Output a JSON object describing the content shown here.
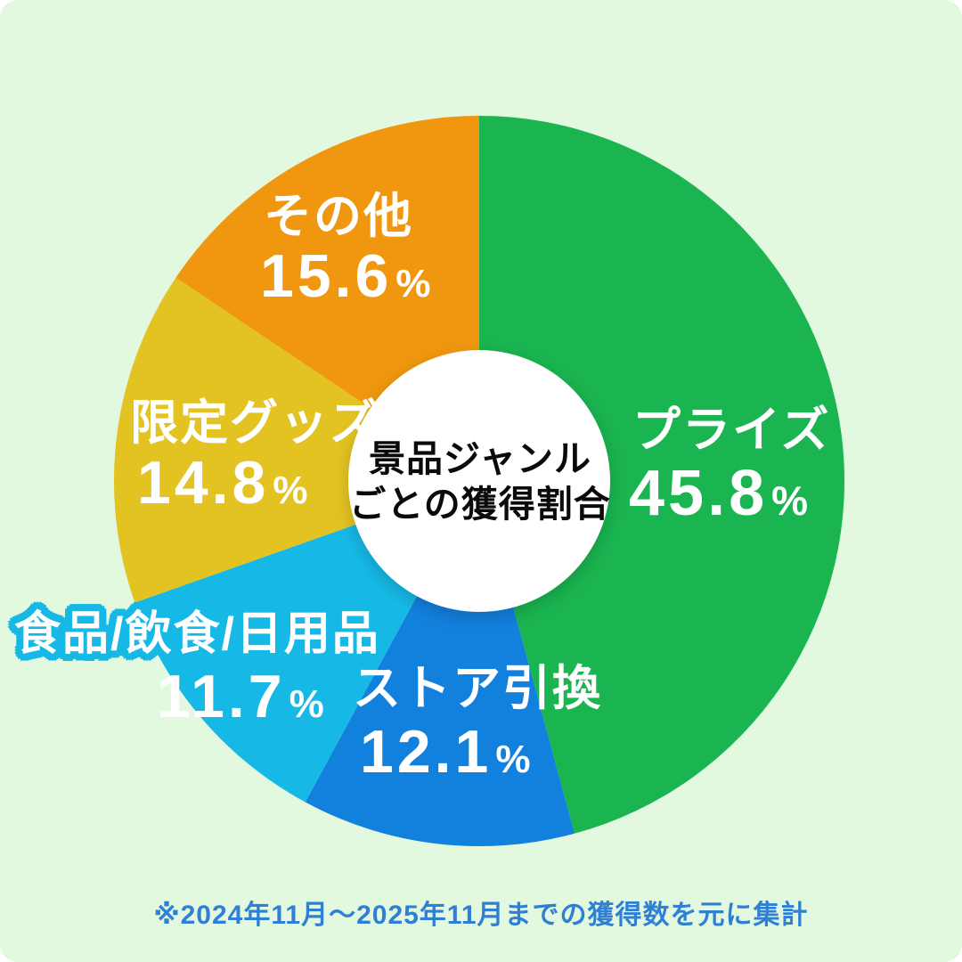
{
  "colors": {
    "page": "#FFFFFF",
    "background": "#E2F9E0",
    "center_text": "#0A0A0A",
    "label_text": "#FFFFFF",
    "footnote_text": "#2F80D5",
    "center_circle": "#FFFFFF"
  },
  "center_title": {
    "line1": "景品ジャンル",
    "line2": "ごとの獲得割合"
  },
  "percent_symbol": "%",
  "footnote": "※2024年11月〜2025年11月までの獲得数を元に集計",
  "chart_data": {
    "type": "pie",
    "title": "景品ジャンルごとの獲得割合",
    "unit": "%",
    "start_angle_deg": 0,
    "direction": "clockwise",
    "center_hole": true,
    "legend_position": "on-slice labels",
    "categories": [
      "プライズ",
      "ストア引換",
      "食品/飲食/日用品",
      "限定グッズ",
      "その他"
    ],
    "values": [
      45.8,
      12.1,
      11.7,
      14.8,
      15.6
    ],
    "segments": [
      {
        "label": "プライズ",
        "value": 45.8,
        "color": "#1AB450"
      },
      {
        "label": "ストア引換",
        "value": 12.1,
        "color": "#1280DD"
      },
      {
        "label": "食品/飲食/日用品",
        "value": 11.7,
        "color": "#16B9E6"
      },
      {
        "label": "限定グッズ",
        "value": 14.8,
        "color": "#E3C322"
      },
      {
        "label": "その他",
        "value": 15.6,
        "color": "#F0970F"
      }
    ],
    "annotation": "※2024年11月〜2025年11月までの獲得数を元に集計"
  }
}
